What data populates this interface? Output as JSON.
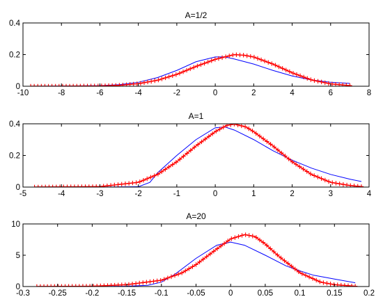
{
  "figure": {
    "background": "#ffffff"
  },
  "chart_data": [
    {
      "type": "line",
      "title": "A=1/2",
      "xlim": [
        -10,
        8
      ],
      "ylim": [
        0,
        0.4
      ],
      "xticks": [
        -10,
        -8,
        -6,
        -4,
        -2,
        0,
        2,
        4,
        6,
        8
      ],
      "yticks": [
        0,
        0.2,
        0.4
      ],
      "xtick_labels": [
        "-10",
        "-8",
        "-6",
        "-4",
        "-2",
        "0",
        "2",
        "4",
        "6",
        "8"
      ],
      "ytick_labels": [
        "0",
        "0.2",
        "0.4"
      ],
      "grid": false,
      "series": [
        {
          "style": "solid line",
          "color": "#0000ff",
          "x": [
            -9.6,
            -8,
            -6,
            -5,
            -4,
            -3,
            -2,
            -1,
            0,
            0.5,
            1,
            2,
            3,
            4,
            5,
            6,
            7
          ],
          "y": [
            0,
            0.001,
            0.004,
            0.01,
            0.025,
            0.055,
            0.1,
            0.155,
            0.185,
            0.185,
            0.172,
            0.14,
            0.1,
            0.065,
            0.04,
            0.025,
            0.018
          ]
        },
        {
          "style": "line with plus markers",
          "color": "#ff0000",
          "x": [
            -9.6,
            -8,
            -6,
            -5,
            -4,
            -3,
            -2,
            -1,
            0,
            1,
            1.5,
            2,
            3,
            4,
            5,
            6,
            7
          ],
          "y": [
            0,
            0,
            0.002,
            0.006,
            0.016,
            0.038,
            0.075,
            0.125,
            0.17,
            0.2,
            0.196,
            0.185,
            0.14,
            0.085,
            0.04,
            0.015,
            0.004
          ]
        }
      ]
    },
    {
      "type": "line",
      "title": "A=1",
      "xlim": [
        -5,
        4
      ],
      "ylim": [
        0,
        0.4
      ],
      "xticks": [
        -5,
        -4,
        -3,
        -2,
        -1,
        0,
        1,
        2,
        3,
        4
      ],
      "yticks": [
        0,
        0.2,
        0.4
      ],
      "xtick_labels": [
        "-5",
        "-4",
        "-3",
        "-2",
        "-1",
        "0",
        "1",
        "2",
        "3",
        "4"
      ],
      "ytick_labels": [
        "0",
        "0.2",
        "0.4"
      ],
      "grid": false,
      "series": [
        {
          "style": "solid line",
          "color": "#0000ff",
          "x": [
            -4.7,
            -3,
            -2,
            -1.7,
            -1.5,
            -1,
            -0.5,
            0,
            0.25,
            0.5,
            1,
            1.5,
            2,
            2.5,
            3,
            3.5,
            3.8
          ],
          "y": [
            0,
            0,
            0.002,
            0.03,
            0.09,
            0.2,
            0.3,
            0.375,
            0.38,
            0.36,
            0.3,
            0.23,
            0.17,
            0.12,
            0.08,
            0.05,
            0.035
          ]
        },
        {
          "style": "line with plus markers",
          "color": "#ff0000",
          "x": [
            -4.7,
            -3,
            -2,
            -1.5,
            -1,
            -0.5,
            0,
            0.3,
            0.5,
            0.8,
            1,
            1.5,
            2,
            2.5,
            3,
            3.5,
            3.8
          ],
          "y": [
            0,
            0.003,
            0.03,
            0.08,
            0.16,
            0.26,
            0.35,
            0.39,
            0.398,
            0.38,
            0.35,
            0.26,
            0.16,
            0.08,
            0.03,
            0.01,
            0.003
          ]
        }
      ]
    },
    {
      "type": "line",
      "title": "A=20",
      "xlim": [
        -0.3,
        0.2
      ],
      "ylim": [
        0,
        10
      ],
      "xticks": [
        -0.3,
        -0.25,
        -0.2,
        -0.15,
        -0.1,
        -0.05,
        0,
        0.05,
        0.1,
        0.15,
        0.2
      ],
      "yticks": [
        0,
        5,
        10
      ],
      "xtick_labels": [
        "-0.3",
        "-0.25",
        "-0.2",
        "-0.15",
        "-0.1",
        "-0.05",
        "0",
        "0.05",
        "0.1",
        "0.15",
        "0.2"
      ],
      "ytick_labels": [
        "0",
        "5",
        "10"
      ],
      "grid": false,
      "series": [
        {
          "style": "solid line",
          "color": "#0000ff",
          "x": [
            -0.28,
            -0.2,
            -0.15,
            -0.12,
            -0.1,
            -0.08,
            -0.05,
            -0.02,
            0,
            0.02,
            0.05,
            0.08,
            0.1,
            0.12,
            0.15,
            0.18
          ],
          "y": [
            0,
            0,
            0.05,
            0.2,
            0.7,
            2,
            4.5,
            6.6,
            7.1,
            6.6,
            5,
            3.3,
            2.5,
            1.8,
            1.2,
            0.6
          ]
        },
        {
          "style": "line with plus markers",
          "color": "#ff0000",
          "x": [
            -0.28,
            -0.2,
            -0.15,
            -0.1,
            -0.07,
            -0.05,
            -0.02,
            0,
            0.02,
            0.035,
            0.05,
            0.07,
            0.1,
            0.13,
            0.15,
            0.18
          ],
          "y": [
            0,
            0.05,
            0.3,
            1,
            2.2,
            3.5,
            6,
            7.6,
            8.3,
            8,
            6.8,
            4.8,
            2.2,
            0.7,
            0.3,
            0.05
          ]
        }
      ]
    }
  ]
}
